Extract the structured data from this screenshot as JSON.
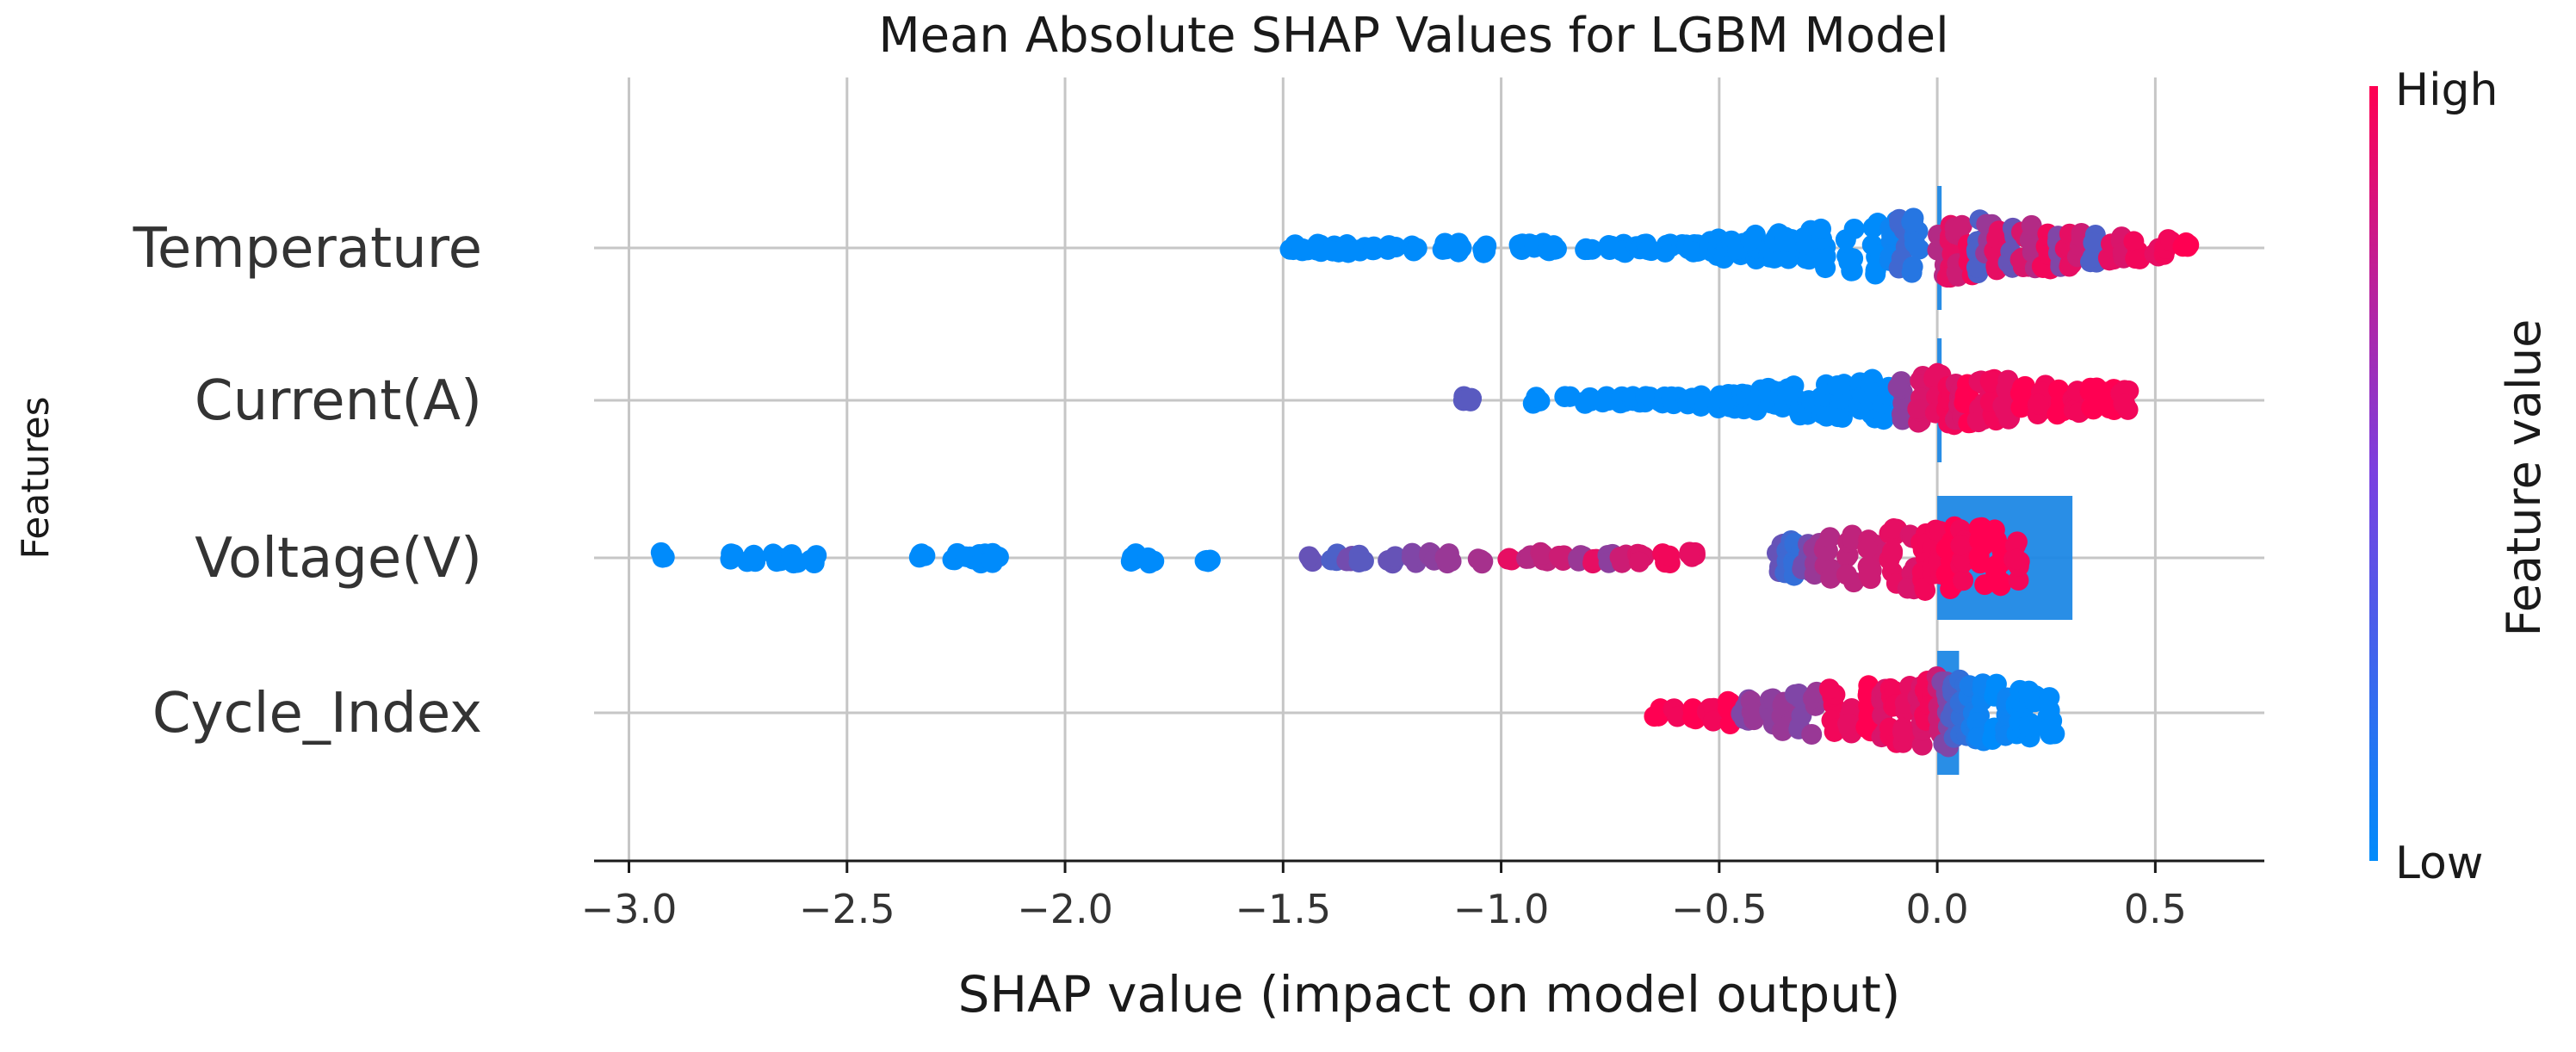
{
  "chart_data": {
    "type": "scatter",
    "subtype": "shap-beeswarm-with-mean-abs-bars",
    "title": "Mean Absolute SHAP Values for LGBM Model",
    "xlabel": "SHAP value (impact on model output)",
    "ylabel": "Features",
    "xlim": [
      -3.08,
      0.75
    ],
    "xticks": [
      -3.0,
      -2.5,
      -2.0,
      -1.5,
      -1.0,
      -0.5,
      0.0,
      0.5
    ],
    "xtick_labels": [
      "−3.0",
      "−2.5",
      "−2.0",
      "−1.5",
      "−1.0",
      "−0.5",
      "0.0",
      "0.5"
    ],
    "grid": true,
    "features": [
      "Temperature",
      "Current(A)",
      "Voltage(V)",
      "Cycle_Index"
    ],
    "mean_abs_shap": [
      0.01,
      0.01,
      0.31,
      0.05
    ],
    "colorbar": {
      "label": "Feature value",
      "high_label": "High",
      "low_label": "Low",
      "low_color": "#008bfb",
      "high_color": "#ff0052"
    },
    "bar_color": "#1e88e5",
    "series": [
      {
        "name": "Temperature",
        "spread": 0.55,
        "points": [
          [
            -1.48,
            0
          ],
          [
            -1.45,
            0
          ],
          [
            -1.42,
            0
          ],
          [
            -1.38,
            0
          ],
          [
            -1.35,
            0
          ],
          [
            -1.32,
            0
          ],
          [
            -1.29,
            0
          ],
          [
            -1.25,
            0
          ],
          [
            -1.2,
            0
          ],
          [
            -1.13,
            0
          ],
          [
            -1.1,
            0
          ],
          [
            -1.04,
            0
          ],
          [
            -0.96,
            0
          ],
          [
            -0.93,
            0
          ],
          [
            -0.9,
            0
          ],
          [
            -0.88,
            0
          ],
          [
            -0.8,
            0
          ],
          [
            -0.75,
            0
          ],
          [
            -0.72,
            0
          ],
          [
            -0.68,
            0
          ],
          [
            -0.66,
            0
          ],
          [
            -0.62,
            0
          ],
          [
            -0.58,
            0
          ],
          [
            -0.55,
            0
          ],
          [
            -0.52,
            0
          ],
          [
            -0.5,
            0
          ],
          [
            -0.48,
            0
          ],
          [
            -0.45,
            0
          ],
          [
            -0.42,
            0
          ],
          [
            -0.38,
            0
          ],
          [
            -0.36,
            0
          ],
          [
            -0.34,
            0
          ],
          [
            -0.3,
            0
          ],
          [
            -0.26,
            0
          ],
          [
            -0.2,
            0
          ],
          [
            -0.14,
            0
          ],
          [
            -0.1,
            0.05
          ],
          [
            -0.08,
            0.25
          ],
          [
            -0.05,
            0.15
          ],
          [
            0.01,
            0.7
          ],
          [
            0.03,
            0.9
          ],
          [
            0.05,
            0.8
          ],
          [
            0.08,
            0.95
          ],
          [
            0.1,
            0.3
          ],
          [
            0.12,
            0.6
          ],
          [
            0.14,
            0.9
          ],
          [
            0.17,
            0.4
          ],
          [
            0.2,
            0.85
          ],
          [
            0.22,
            0.7
          ],
          [
            0.25,
            0.95
          ],
          [
            0.28,
            0.5
          ],
          [
            0.3,
            0.9
          ],
          [
            0.33,
            0.8
          ],
          [
            0.36,
            0.3
          ],
          [
            0.4,
            0.9
          ],
          [
            0.43,
            0.85
          ],
          [
            0.46,
            0.95
          ],
          [
            0.5,
            0.9
          ],
          [
            0.53,
            0.95
          ],
          [
            0.57,
            1.0
          ]
        ]
      },
      {
        "name": "Current(A)",
        "spread": 0.45,
        "points": [
          [
            -1.08,
            0.35
          ],
          [
            -1.07,
            0.35
          ],
          [
            -0.92,
            0
          ],
          [
            -0.85,
            0
          ],
          [
            -0.8,
            0
          ],
          [
            -0.76,
            0
          ],
          [
            -0.72,
            0
          ],
          [
            -0.69,
            0
          ],
          [
            -0.66,
            0
          ],
          [
            -0.63,
            0
          ],
          [
            -0.6,
            0
          ],
          [
            -0.57,
            0
          ],
          [
            -0.54,
            0
          ],
          [
            -0.5,
            0
          ],
          [
            -0.47,
            0
          ],
          [
            -0.44,
            0
          ],
          [
            -0.41,
            0
          ],
          [
            -0.38,
            0
          ],
          [
            -0.35,
            0
          ],
          [
            -0.32,
            0
          ],
          [
            -0.29,
            0
          ],
          [
            -0.26,
            0
          ],
          [
            -0.22,
            0
          ],
          [
            -0.18,
            0
          ],
          [
            -0.15,
            0
          ],
          [
            -0.12,
            0
          ],
          [
            -0.08,
            0.55
          ],
          [
            -0.04,
            0.85
          ],
          [
            0.0,
            0.9
          ],
          [
            0.03,
            0.95
          ],
          [
            0.05,
            0.85
          ],
          [
            0.07,
            1.0
          ],
          [
            0.1,
            0.9
          ],
          [
            0.13,
            0.95
          ],
          [
            0.16,
            0.9
          ],
          [
            0.2,
            1.0
          ],
          [
            0.24,
            0.95
          ],
          [
            0.28,
            1.0
          ],
          [
            0.32,
            0.95
          ],
          [
            0.36,
            1.0
          ],
          [
            0.4,
            1.0
          ],
          [
            0.43,
            0.95
          ]
        ]
      },
      {
        "name": "Voltage(V)",
        "spread": 0.6,
        "points": [
          [
            -2.92,
            0
          ],
          [
            -2.76,
            0
          ],
          [
            -2.72,
            0
          ],
          [
            -2.66,
            0
          ],
          [
            -2.62,
            0
          ],
          [
            -2.58,
            0
          ],
          [
            -2.33,
            0
          ],
          [
            -2.25,
            0
          ],
          [
            -2.22,
            0
          ],
          [
            -2.19,
            0
          ],
          [
            -2.16,
            0
          ],
          [
            -1.84,
            0
          ],
          [
            -1.8,
            0
          ],
          [
            -1.67,
            0
          ],
          [
            -1.44,
            0.4
          ],
          [
            -1.38,
            0.3
          ],
          [
            -1.35,
            0.45
          ],
          [
            -1.32,
            0.35
          ],
          [
            -1.25,
            0.4
          ],
          [
            -1.2,
            0.5
          ],
          [
            -1.16,
            0.55
          ],
          [
            -1.12,
            0.6
          ],
          [
            -1.05,
            0.65
          ],
          [
            -0.98,
            0.9
          ],
          [
            -0.94,
            0.7
          ],
          [
            -0.9,
            0.75
          ],
          [
            -0.86,
            0.8
          ],
          [
            -0.82,
            0.6
          ],
          [
            -0.78,
            0.9
          ],
          [
            -0.75,
            0.55
          ],
          [
            -0.72,
            0.8
          ],
          [
            -0.68,
            0.85
          ],
          [
            -0.62,
            0.95
          ],
          [
            -0.56,
            0.9
          ],
          [
            -0.36,
            0.4
          ],
          [
            -0.34,
            0.25
          ],
          [
            -0.32,
            0.2
          ],
          [
            -0.3,
            0.45
          ],
          [
            -0.28,
            0.6
          ],
          [
            -0.25,
            0.7
          ],
          [
            -0.2,
            0.75
          ],
          [
            -0.15,
            0.8
          ],
          [
            -0.1,
            0.9
          ],
          [
            -0.06,
            0.85
          ],
          [
            -0.03,
            0.95
          ],
          [
            0.0,
            0.95
          ],
          [
            0.03,
            1.0
          ],
          [
            0.06,
            0.95
          ],
          [
            0.1,
            1.0
          ],
          [
            0.14,
            1.0
          ],
          [
            0.18,
            0.95
          ]
        ]
      },
      {
        "name": "Cycle_Index",
        "spread": 0.6,
        "points": [
          [
            -0.64,
            1.0
          ],
          [
            -0.6,
            0.95
          ],
          [
            -0.56,
            1.0
          ],
          [
            -0.52,
            0.95
          ],
          [
            -0.48,
            1.0
          ],
          [
            -0.44,
            0.5
          ],
          [
            -0.42,
            0.6
          ],
          [
            -0.38,
            0.55
          ],
          [
            -0.35,
            0.6
          ],
          [
            -0.32,
            0.5
          ],
          [
            -0.28,
            0.6
          ],
          [
            -0.24,
            0.95
          ],
          [
            -0.2,
            0.9
          ],
          [
            -0.16,
            1.0
          ],
          [
            -0.12,
            0.85
          ],
          [
            -0.1,
            0.95
          ],
          [
            -0.07,
            0.9
          ],
          [
            -0.04,
            0.85
          ],
          [
            -0.02,
            0.95
          ],
          [
            0.0,
            0.8
          ],
          [
            0.02,
            0.5
          ],
          [
            0.04,
            0.3
          ],
          [
            0.06,
            0.2
          ],
          [
            0.08,
            0.1
          ],
          [
            0.1,
            0.05
          ],
          [
            0.13,
            0.0
          ],
          [
            0.16,
            0.05
          ],
          [
            0.19,
            0.0
          ],
          [
            0.22,
            0.0
          ],
          [
            0.26,
            0.0
          ]
        ]
      }
    ]
  }
}
